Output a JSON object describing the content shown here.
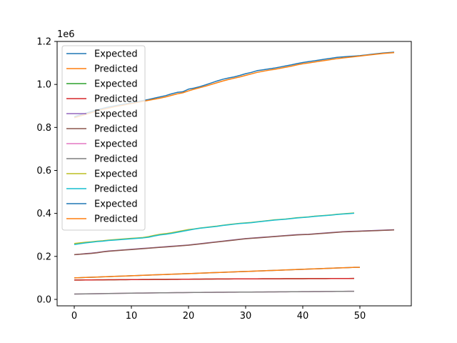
{
  "chart_data": {
    "type": "line",
    "title": "",
    "xlabel": "",
    "ylabel": "",
    "y_offset_label": "1e6",
    "xlim": [
      -3,
      59
    ],
    "ylim": [
      -0.03,
      1.2
    ],
    "xticks": [
      0,
      10,
      20,
      30,
      40,
      50
    ],
    "xtick_labels": [
      "0",
      "10",
      "20",
      "30",
      "40",
      "50"
    ],
    "yticks": [
      0.0,
      0.2,
      0.4,
      0.6,
      0.8,
      1.0,
      1.2
    ],
    "ytick_labels": [
      "0.0",
      "0.2",
      "0.4",
      "0.6",
      "0.8",
      "1.0",
      "1.2"
    ],
    "grid": false,
    "legend_position": "upper-left",
    "series": [
      {
        "name": "Expected",
        "color": "#1f77b4",
        "x_start": 0,
        "values": [
          0.85,
          0.858,
          0.866,
          0.874,
          0.882,
          0.889,
          0.895,
          0.9,
          0.905,
          0.91,
          0.915,
          0.92,
          0.925,
          0.93,
          0.936,
          0.942,
          0.948,
          0.956,
          0.963,
          0.966,
          0.978,
          0.983,
          0.99,
          0.998,
          1.007,
          1.016,
          1.024,
          1.03,
          1.035,
          1.042,
          1.05,
          1.056,
          1.064,
          1.068,
          1.072,
          1.076,
          1.081,
          1.086,
          1.091,
          1.097,
          1.102,
          1.106,
          1.11,
          1.114,
          1.118,
          1.122,
          1.126,
          1.128,
          1.13,
          1.132,
          1.134,
          1.137,
          1.14,
          1.143,
          1.146,
          1.148,
          1.15
        ]
      },
      {
        "name": "Predicted",
        "color": "#ff7f0e",
        "x_start": 0,
        "values": [
          0.845,
          0.853,
          0.861,
          0.869,
          0.877,
          0.884,
          0.89,
          0.896,
          0.901,
          0.906,
          0.911,
          0.916,
          0.921,
          0.926,
          0.931,
          0.936,
          0.942,
          0.949,
          0.956,
          0.961,
          0.97,
          0.978,
          0.985,
          0.992,
          1.0,
          1.008,
          1.016,
          1.023,
          1.029,
          1.035,
          1.042,
          1.049,
          1.056,
          1.061,
          1.066,
          1.07,
          1.075,
          1.08,
          1.085,
          1.091,
          1.096,
          1.1,
          1.104,
          1.108,
          1.112,
          1.116,
          1.12,
          1.123,
          1.126,
          1.129,
          1.132,
          1.135,
          1.138,
          1.141,
          1.144,
          1.146,
          1.148
        ]
      },
      {
        "name": "Expected",
        "color": "#2ca02c",
        "x_start": 0,
        "values": [
          0.09,
          0.0902,
          0.0904,
          0.0906,
          0.0908,
          0.091,
          0.0912,
          0.0914,
          0.0916,
          0.0918,
          0.092,
          0.0922,
          0.0924,
          0.0926,
          0.0928,
          0.093,
          0.0932,
          0.0934,
          0.0936,
          0.0938,
          0.094,
          0.0942,
          0.0944,
          0.0946,
          0.0948,
          0.095,
          0.0951,
          0.0952,
          0.0953,
          0.0954,
          0.0955,
          0.0956,
          0.0957,
          0.0958,
          0.0959,
          0.096,
          0.0961,
          0.0962,
          0.0963,
          0.0964,
          0.0965,
          0.0966,
          0.0967,
          0.0968,
          0.0969,
          0.097,
          0.0971,
          0.0972,
          0.0973,
          0.0974
        ]
      },
      {
        "name": "Predicted",
        "color": "#d62728",
        "x_start": 0,
        "values": [
          0.09,
          0.0902,
          0.0904,
          0.0906,
          0.0908,
          0.091,
          0.0912,
          0.0914,
          0.0916,
          0.0918,
          0.092,
          0.0922,
          0.0924,
          0.0926,
          0.0928,
          0.093,
          0.0932,
          0.0934,
          0.0936,
          0.0938,
          0.094,
          0.0942,
          0.0944,
          0.0946,
          0.0948,
          0.095,
          0.0951,
          0.0952,
          0.0953,
          0.0954,
          0.0955,
          0.0956,
          0.0957,
          0.0958,
          0.0959,
          0.096,
          0.0961,
          0.0962,
          0.0963,
          0.0964,
          0.0965,
          0.0966,
          0.0967,
          0.0968,
          0.0969,
          0.097,
          0.0971,
          0.0972,
          0.0973,
          0.0974
        ]
      },
      {
        "name": "Expected",
        "color": "#9467bd",
        "x_start": 0,
        "values": [
          0.208,
          0.21,
          0.213,
          0.215,
          0.218,
          0.222,
          0.225,
          0.227,
          0.229,
          0.231,
          0.233,
          0.235,
          0.237,
          0.239,
          0.241,
          0.243,
          0.245,
          0.247,
          0.249,
          0.251,
          0.253,
          0.256,
          0.259,
          0.262,
          0.265,
          0.268,
          0.271,
          0.274,
          0.277,
          0.28,
          0.283,
          0.285,
          0.287,
          0.289,
          0.291,
          0.293,
          0.295,
          0.297,
          0.299,
          0.301,
          0.302,
          0.303,
          0.305,
          0.307,
          0.309,
          0.311,
          0.313,
          0.315,
          0.316,
          0.317,
          0.318,
          0.319,
          0.32,
          0.321,
          0.322,
          0.323,
          0.324
        ]
      },
      {
        "name": "Predicted",
        "color": "#8c564b",
        "x_start": 0,
        "values": [
          0.208,
          0.21,
          0.212,
          0.214,
          0.217,
          0.221,
          0.224,
          0.226,
          0.228,
          0.23,
          0.232,
          0.234,
          0.236,
          0.238,
          0.24,
          0.242,
          0.244,
          0.246,
          0.248,
          0.25,
          0.252,
          0.255,
          0.258,
          0.261,
          0.264,
          0.267,
          0.27,
          0.273,
          0.276,
          0.279,
          0.282,
          0.284,
          0.286,
          0.288,
          0.29,
          0.292,
          0.294,
          0.296,
          0.298,
          0.3,
          0.301,
          0.302,
          0.304,
          0.306,
          0.308,
          0.31,
          0.312,
          0.314,
          0.315,
          0.316,
          0.317,
          0.318,
          0.319,
          0.32,
          0.321,
          0.322,
          0.323
        ]
      },
      {
        "name": "Expected",
        "color": "#e377c2",
        "x_start": 0,
        "values": [
          0.025,
          0.0254,
          0.0258,
          0.0262,
          0.0266,
          0.027,
          0.0274,
          0.0278,
          0.0282,
          0.0286,
          0.029,
          0.0293,
          0.0296,
          0.0299,
          0.0302,
          0.0305,
          0.0308,
          0.0311,
          0.0314,
          0.0317,
          0.032,
          0.0322,
          0.0324,
          0.0326,
          0.0328,
          0.033,
          0.0332,
          0.0334,
          0.0336,
          0.0338,
          0.034,
          0.0342,
          0.0344,
          0.0346,
          0.0348,
          0.035,
          0.0352,
          0.0354,
          0.0356,
          0.0358,
          0.036,
          0.0362,
          0.0364,
          0.0366,
          0.0368,
          0.037,
          0.0372,
          0.0374,
          0.0376,
          0.0378
        ]
      },
      {
        "name": "Predicted",
        "color": "#7f7f7f",
        "x_start": 0,
        "values": [
          0.025,
          0.0254,
          0.0258,
          0.0262,
          0.0266,
          0.027,
          0.0274,
          0.0278,
          0.0282,
          0.0286,
          0.029,
          0.0293,
          0.0296,
          0.0299,
          0.0302,
          0.0305,
          0.0308,
          0.0311,
          0.0314,
          0.0317,
          0.032,
          0.0322,
          0.0324,
          0.0326,
          0.0328,
          0.033,
          0.0332,
          0.0334,
          0.0336,
          0.0338,
          0.034,
          0.0342,
          0.0344,
          0.0346,
          0.0348,
          0.035,
          0.0352,
          0.0354,
          0.0356,
          0.0358,
          0.036,
          0.0362,
          0.0364,
          0.0366,
          0.0368,
          0.037,
          0.0372,
          0.0374,
          0.0376,
          0.0378
        ]
      },
      {
        "name": "Expected",
        "color": "#bcbd22",
        "x_start": 0,
        "values": [
          0.26,
          0.263,
          0.266,
          0.268,
          0.271,
          0.273,
          0.276,
          0.278,
          0.28,
          0.282,
          0.284,
          0.286,
          0.288,
          0.292,
          0.298,
          0.303,
          0.306,
          0.31,
          0.315,
          0.32,
          0.325,
          0.328,
          0.332,
          0.335,
          0.338,
          0.341,
          0.345,
          0.348,
          0.351,
          0.354,
          0.356,
          0.358,
          0.361,
          0.364,
          0.367,
          0.37,
          0.372,
          0.374,
          0.377,
          0.38,
          0.382,
          0.384,
          0.387,
          0.389,
          0.391,
          0.393,
          0.396,
          0.398,
          0.4,
          0.402
        ]
      },
      {
        "name": "Predicted",
        "color": "#17becf",
        "x_start": 0,
        "values": [
          0.255,
          0.259,
          0.263,
          0.266,
          0.269,
          0.271,
          0.274,
          0.276,
          0.278,
          0.28,
          0.282,
          0.284,
          0.286,
          0.289,
          0.295,
          0.3,
          0.303,
          0.307,
          0.312,
          0.317,
          0.322,
          0.327,
          0.331,
          0.334,
          0.337,
          0.34,
          0.344,
          0.347,
          0.35,
          0.353,
          0.355,
          0.357,
          0.36,
          0.363,
          0.366,
          0.369,
          0.371,
          0.373,
          0.376,
          0.379,
          0.381,
          0.383,
          0.386,
          0.388,
          0.39,
          0.392,
          0.395,
          0.397,
          0.399,
          0.401
        ]
      },
      {
        "name": "Expected",
        "color": "#1f77b4",
        "x_start": 0,
        "values": [
          0.1,
          0.101,
          0.102,
          0.103,
          0.104,
          0.105,
          0.106,
          0.107,
          0.108,
          0.109,
          0.11,
          0.111,
          0.112,
          0.113,
          0.114,
          0.115,
          0.116,
          0.117,
          0.118,
          0.119,
          0.12,
          0.121,
          0.122,
          0.123,
          0.124,
          0.125,
          0.126,
          0.127,
          0.128,
          0.129,
          0.13,
          0.131,
          0.132,
          0.133,
          0.134,
          0.135,
          0.136,
          0.137,
          0.138,
          0.139,
          0.14,
          0.141,
          0.142,
          0.143,
          0.144,
          0.145,
          0.146,
          0.147,
          0.148,
          0.149,
          0.149
        ]
      },
      {
        "name": "Predicted",
        "color": "#ff7f0e",
        "x_start": 0,
        "values": [
          0.1,
          0.101,
          0.102,
          0.103,
          0.104,
          0.105,
          0.106,
          0.107,
          0.108,
          0.109,
          0.11,
          0.111,
          0.112,
          0.113,
          0.114,
          0.115,
          0.116,
          0.117,
          0.118,
          0.119,
          0.12,
          0.121,
          0.122,
          0.123,
          0.124,
          0.125,
          0.126,
          0.127,
          0.128,
          0.129,
          0.13,
          0.131,
          0.132,
          0.133,
          0.134,
          0.135,
          0.136,
          0.137,
          0.138,
          0.139,
          0.14,
          0.141,
          0.142,
          0.143,
          0.144,
          0.145,
          0.146,
          0.147,
          0.148,
          0.149,
          0.149
        ]
      }
    ]
  }
}
